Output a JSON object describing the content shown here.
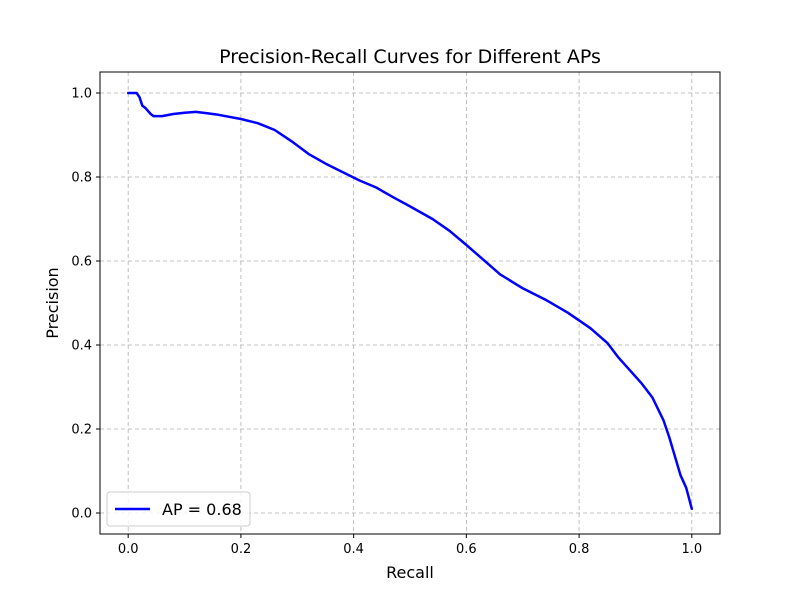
{
  "chart_data": {
    "type": "line",
    "title": "Precision-Recall Curves for Different APs",
    "xlabel": "Recall",
    "ylabel": "Precision",
    "xlim": [
      -0.05,
      1.05
    ],
    "ylim": [
      -0.05,
      1.05
    ],
    "x_ticks": [
      0.0,
      0.2,
      0.4,
      0.6,
      0.8,
      1.0
    ],
    "x_tick_labels": [
      "0.0",
      "0.2",
      "0.4",
      "0.6",
      "0.8",
      "1.0"
    ],
    "y_ticks": [
      0.0,
      0.2,
      0.4,
      0.6,
      0.8,
      1.0
    ],
    "y_tick_labels": [
      "0.0",
      "0.2",
      "0.4",
      "0.6",
      "0.8",
      "1.0"
    ],
    "grid": true,
    "legend_position": "lower-left",
    "series": [
      {
        "name": "AP = 0.68",
        "color": "#0000ff",
        "x": [
          0.0,
          0.015,
          0.02,
          0.025,
          0.03,
          0.04,
          0.045,
          0.05,
          0.06,
          0.08,
          0.1,
          0.12,
          0.14,
          0.16,
          0.2,
          0.23,
          0.26,
          0.29,
          0.32,
          0.35,
          0.38,
          0.41,
          0.44,
          0.47,
          0.5,
          0.54,
          0.57,
          0.6,
          0.63,
          0.66,
          0.7,
          0.74,
          0.78,
          0.82,
          0.85,
          0.87,
          0.89,
          0.91,
          0.93,
          0.95,
          0.96,
          0.97,
          0.98,
          0.99,
          0.995,
          1.0
        ],
        "values": [
          1.0,
          1.0,
          0.99,
          0.97,
          0.965,
          0.95,
          0.945,
          0.945,
          0.945,
          0.95,
          0.953,
          0.955,
          0.952,
          0.948,
          0.938,
          0.928,
          0.912,
          0.885,
          0.855,
          0.832,
          0.812,
          0.792,
          0.775,
          0.752,
          0.73,
          0.7,
          0.672,
          0.638,
          0.603,
          0.568,
          0.535,
          0.508,
          0.477,
          0.44,
          0.405,
          0.37,
          0.34,
          0.31,
          0.275,
          0.22,
          0.18,
          0.135,
          0.09,
          0.06,
          0.035,
          0.01
        ]
      }
    ]
  }
}
